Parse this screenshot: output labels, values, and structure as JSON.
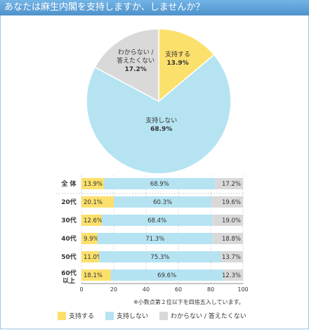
{
  "page": {
    "title": "あなたは麻生内閣を支持しますか、しませんか？",
    "note": "※小数点第２位以下を四捨五入しています。"
  },
  "colors": {
    "support": "#fce06c",
    "not_support": "#b5e3f2",
    "unknown": "#d9d9d9",
    "title_bar": "#5a9fd6"
  },
  "chart_data": [
    {
      "type": "pie",
      "slices": [
        {
          "label": "支持する",
          "value": 13.9,
          "value_label": "13.9%",
          "color": "#fce06c"
        },
        {
          "label": "支持しない",
          "value": 68.9,
          "value_label": "68.9%",
          "color": "#b5e3f2"
        },
        {
          "label": "わからない / 答えたくない",
          "value": 17.2,
          "value_label": "17.2%",
          "color": "#d9d9d9"
        }
      ]
    },
    {
      "type": "bar",
      "orientation": "horizontal",
      "stacked": true,
      "categories": [
        "全 体",
        "20代",
        "30代",
        "40代",
        "50代",
        "60代以上"
      ],
      "series": [
        {
          "name": "支持する",
          "color": "#fce06c",
          "values": [
            13.9,
            20.1,
            12.6,
            9.9,
            11.0,
            18.1
          ],
          "labels": [
            "13.9%",
            "20.1%",
            "12.6%",
            "9.9%",
            "11.0%",
            "18.1%"
          ]
        },
        {
          "name": "支持しない",
          "color": "#b5e3f2",
          "values": [
            68.9,
            60.3,
            68.4,
            71.3,
            75.3,
            69.6
          ],
          "labels": [
            "68.9%",
            "60.3%",
            "68.4%",
            "71.3%",
            "75.3%",
            "69.6%"
          ]
        },
        {
          "name": "わからない / 答えたくない",
          "color": "#d9d9d9",
          "values": [
            17.2,
            19.6,
            19.0,
            18.8,
            13.7,
            12.3
          ],
          "labels": [
            "17.2%",
            "19.6%",
            "19.0%",
            "18.8%",
            "13.7%",
            "12.3%"
          ]
        }
      ],
      "xlim": [
        0,
        100
      ],
      "xticks": [
        "0",
        "20",
        "40",
        "60",
        "80",
        "100"
      ]
    }
  ]
}
